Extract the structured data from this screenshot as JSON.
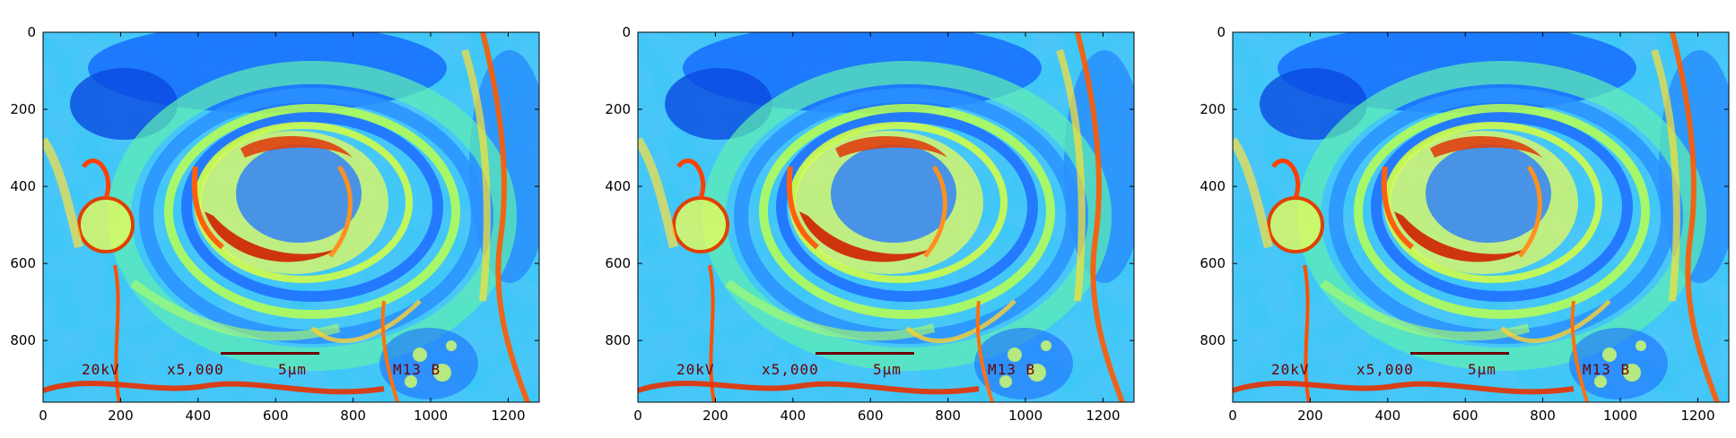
{
  "panels": [
    {
      "name": "left",
      "image_overlay": {
        "voltage": "20kV",
        "magnification": "x5,000",
        "scale": "5µm",
        "sample_id": "M13 B"
      },
      "x_ticks": [
        "0",
        "200",
        "400",
        "600",
        "800",
        "1000",
        "1200"
      ],
      "y_ticks": [
        "0",
        "200",
        "400",
        "600",
        "800"
      ]
    },
    {
      "name": "middle",
      "image_overlay": {
        "voltage": "20kV",
        "magnification": "x5,000",
        "scale": "5µm",
        "sample_id": "M13 B"
      },
      "x_ticks": [
        "0",
        "200",
        "400",
        "600",
        "800",
        "1000",
        "1200"
      ],
      "y_ticks": [
        "0",
        "200",
        "400",
        "600",
        "800"
      ]
    },
    {
      "name": "right",
      "image_overlay": {
        "voltage": "20kV",
        "magnification": "x5,000",
        "scale": "5µm",
        "sample_id": "M13 B"
      },
      "x_ticks": [
        "0",
        "200",
        "400",
        "600",
        "800",
        "1000",
        "1200"
      ],
      "y_ticks": [
        "0",
        "200",
        "400",
        "600",
        "800"
      ]
    }
  ],
  "colormap": "jet",
  "colors": {
    "low": "#0050ff",
    "mid": "#40e0d0",
    "high_mid": "#ffff40",
    "high": "#e02000"
  }
}
